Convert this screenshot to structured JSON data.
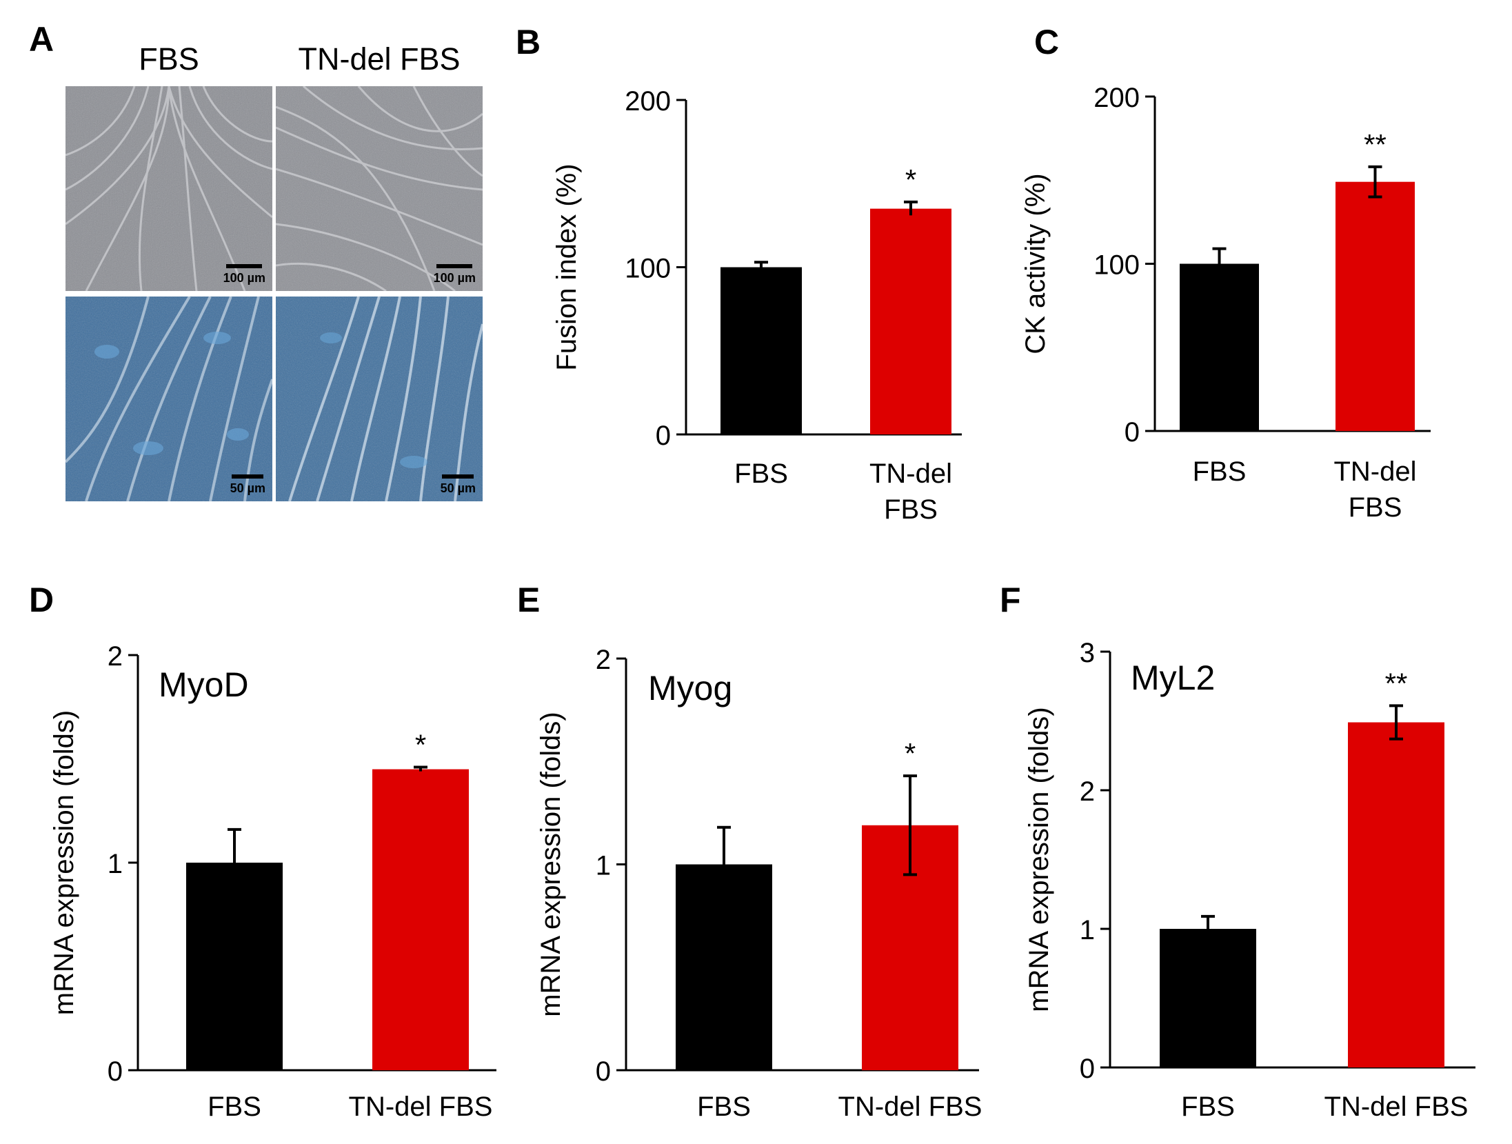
{
  "panel_a": {
    "letter": "A",
    "col_labels": [
      "FBS",
      "TN-del FBS"
    ],
    "scale_top": "100 µm",
    "scale_bottom": "50 µm"
  },
  "colors": {
    "fbs": "#000000",
    "tn_del": "#dd0000"
  },
  "chart_data": [
    {
      "panel": "B",
      "type": "bar",
      "title": "",
      "categories": [
        [
          "FBS"
        ],
        [
          "TN-del",
          "FBS"
        ]
      ],
      "values": [
        100,
        135
      ],
      "errors": [
        3,
        4
      ],
      "significance": [
        "",
        "*"
      ],
      "ylabel": "Fusion index (%)",
      "ylim": [
        0,
        200
      ],
      "yticks": [
        0,
        100,
        200
      ]
    },
    {
      "panel": "C",
      "type": "bar",
      "title": "",
      "categories": [
        [
          "FBS"
        ],
        [
          "TN-del",
          "FBS"
        ]
      ],
      "values": [
        100,
        149
      ],
      "errors": [
        9,
        9
      ],
      "significance": [
        "",
        "**"
      ],
      "ylabel": "CK activity (%)",
      "ylim": [
        0,
        200
      ],
      "yticks": [
        0,
        100,
        200
      ]
    },
    {
      "panel": "D",
      "type": "bar",
      "title": "MyoD",
      "categories": [
        [
          "FBS"
        ],
        [
          "TN-del FBS"
        ]
      ],
      "values": [
        1.0,
        1.45
      ],
      "errors": [
        0.16,
        0.01
      ],
      "significance": [
        "",
        "*"
      ],
      "ylabel": "mRNA expression (folds)",
      "ylim": [
        0,
        2
      ],
      "yticks": [
        0,
        1,
        2
      ]
    },
    {
      "panel": "E",
      "type": "bar",
      "title": "Myog",
      "categories": [
        [
          "FBS"
        ],
        [
          "TN-del FBS"
        ]
      ],
      "values": [
        1.0,
        1.19
      ],
      "errors": [
        0.18,
        0.24
      ],
      "significance": [
        "",
        "*"
      ],
      "ylabel": "mRNA expression (folds)",
      "ylim": [
        0,
        2
      ],
      "yticks": [
        0,
        1,
        2
      ]
    },
    {
      "panel": "F",
      "type": "bar",
      "title": "MyL2",
      "categories": [
        [
          "FBS"
        ],
        [
          "TN-del FBS"
        ]
      ],
      "values": [
        1.0,
        2.49
      ],
      "errors": [
        0.09,
        0.12
      ],
      "significance": [
        "",
        "**"
      ],
      "ylabel": "mRNA expression (folds)",
      "ylim": [
        0,
        3
      ],
      "yticks": [
        0,
        1,
        2,
        3
      ]
    }
  ]
}
